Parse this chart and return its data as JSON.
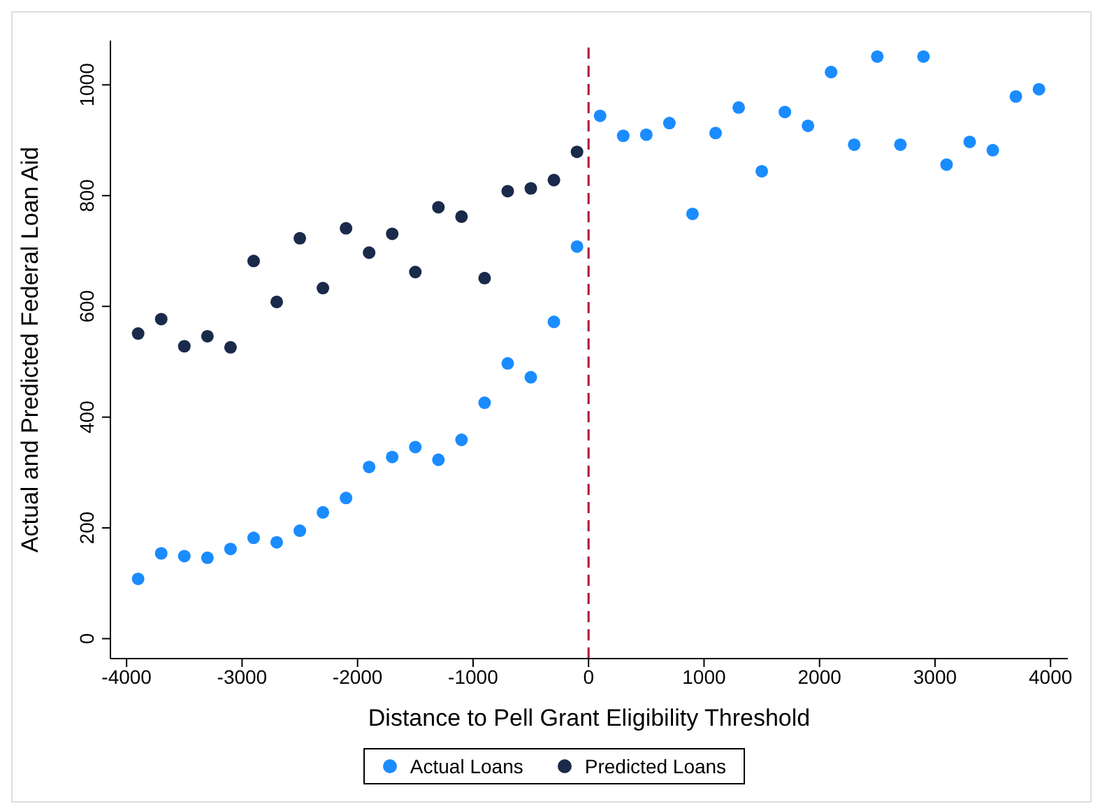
{
  "chart_data": {
    "type": "scatter",
    "xlabel": "Distance to Pell Grant Eligibility Threshold",
    "ylabel": "Actual and Predicted Federal Loan Aid",
    "xlim": [
      -4140,
      4150
    ],
    "xticks": [
      -4000,
      -3000,
      -2000,
      -1000,
      0,
      1000,
      2000,
      3000,
      4000
    ],
    "ylim": [
      -36,
      1080
    ],
    "yticks": [
      0,
      200,
      400,
      600,
      800,
      1000
    ],
    "grid": false,
    "legend": "bottom",
    "marker": "circle",
    "ref_lines": [
      {
        "axis": "x",
        "value": 0,
        "color": "#b0103a",
        "line_style": "dashed"
      }
    ],
    "series": [
      {
        "name": "Actual Loans",
        "color": "#1a8cff",
        "x": [
          -3900,
          -3700,
          -3500,
          -3300,
          -3100,
          -2900,
          -2700,
          -2500,
          -2300,
          -2100,
          -1900,
          -1700,
          -1500,
          -1300,
          -1100,
          -900,
          -700,
          -500,
          -300,
          -100,
          100,
          300,
          500,
          700,
          900,
          1100,
          1300,
          1500,
          1700,
          1900,
          2100,
          2300,
          2500,
          2700,
          2900,
          3100,
          3300,
          3500,
          3700,
          3900
        ],
        "values": [
          108,
          154,
          149,
          146,
          162,
          182,
          174,
          195,
          228,
          254,
          310,
          328,
          346,
          323,
          359,
          426,
          497,
          472,
          572,
          708,
          944,
          908,
          910,
          931,
          767,
          913,
          959,
          844,
          951,
          926,
          1023,
          892,
          1051,
          892,
          1051,
          856,
          897,
          882,
          979,
          992
        ]
      },
      {
        "name": "Predicted Loans",
        "color": "#1a2a4a",
        "x": [
          -3900,
          -3700,
          -3500,
          -3300,
          -3100,
          -2900,
          -2700,
          -2500,
          -2300,
          -2100,
          -1900,
          -1700,
          -1500,
          -1300,
          -1100,
          -900,
          -700,
          -500,
          -300,
          -100
        ],
        "values": [
          551,
          577,
          528,
          546,
          526,
          682,
          608,
          723,
          633,
          741,
          697,
          731,
          662,
          779,
          762,
          651,
          808,
          813,
          828,
          879
        ]
      }
    ]
  }
}
